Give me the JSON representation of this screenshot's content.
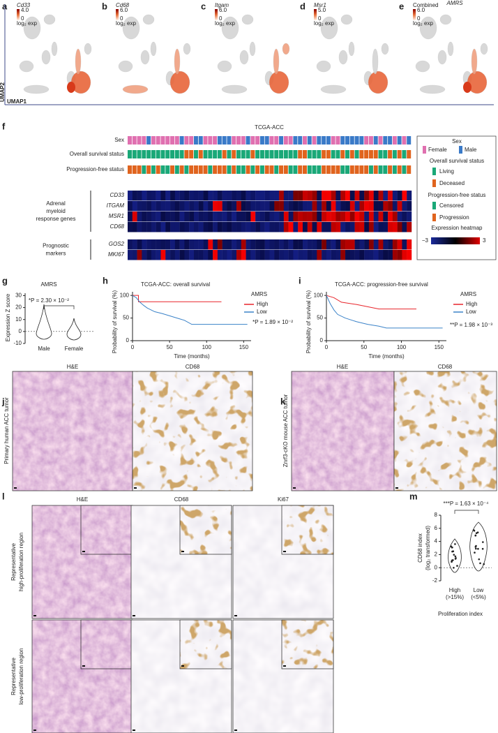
{
  "panel_labels": [
    "a",
    "b",
    "c",
    "d",
    "e",
    "f",
    "g",
    "h",
    "i",
    "j",
    "k",
    "l",
    "m"
  ],
  "umap": {
    "x_axis": "UMAP1",
    "y_axis": "UMAP2",
    "header": "AMRS",
    "unit": "log₂ exp",
    "panels": [
      {
        "gene": "Cd33",
        "max": "4.0",
        "min": "0"
      },
      {
        "gene": "Cd68",
        "max": "6.0",
        "min": "0"
      },
      {
        "gene": "Itgam",
        "max": "6.0",
        "min": "0"
      },
      {
        "gene": "Msr1",
        "max": "5.0",
        "min": "0"
      },
      {
        "gene": "Combined",
        "max": "6.0",
        "min": "0"
      }
    ]
  },
  "heatmap": {
    "title": "TCGA-ACC",
    "annotation_rows": [
      "Sex",
      "Overall survival status",
      "Progression-free status"
    ],
    "groups": [
      {
        "lines": [
          "Adrenal",
          "myeloid",
          "response genes"
        ],
        "genes": [
          "CD33",
          "ITGAM",
          "MSR1",
          "CD68"
        ]
      },
      {
        "lines": [
          "Prognostic",
          "markers"
        ],
        "genes": [
          "GOS2",
          "MKI67"
        ]
      }
    ],
    "legend": {
      "sex_title": "Sex",
      "sex": [
        "Female",
        "Male"
      ],
      "os_title": "Overall survival status",
      "os": [
        "Living",
        "Deceased"
      ],
      "pfs_title": "Progression-free status",
      "pfs": [
        "Censored",
        "Progression"
      ],
      "expr_title": "Expression heatmap",
      "expr_min": "−3",
      "expr_max": "3"
    }
  },
  "chart_data": [
    {
      "type": "violin",
      "title": "AMRS",
      "y_label": "Expression Z score",
      "categories": [
        "Male",
        "Female"
      ],
      "ylim": [
        -10,
        32
      ],
      "yticks": [
        -10,
        0,
        10,
        20,
        30
      ],
      "annotation": "*P = 2.30 × 10⁻²"
    },
    {
      "type": "line",
      "title": "TCGA-ACC: overall survival",
      "x_label": "Time (months)",
      "y_label": "Probability of survival (%)",
      "xlim": [
        0,
        160
      ],
      "xticks": [
        0,
        50,
        100,
        150
      ],
      "ylim": [
        0,
        108
      ],
      "yticks": [
        0,
        50,
        100
      ],
      "legend_title": "AMRS",
      "annotation": "*P = 1.89 × 10⁻²",
      "series": [
        {
          "name": "High",
          "color": "#e8242a",
          "x": [
            0,
            8,
            8,
            120
          ],
          "values": [
            100,
            100,
            86,
            86
          ]
        },
        {
          "name": "Low",
          "color": "#3a82c8",
          "x": [
            0,
            5,
            10,
            15,
            20,
            25,
            30,
            40,
            50,
            60,
            70,
            80,
            155
          ],
          "values": [
            100,
            95,
            85,
            78,
            72,
            68,
            64,
            60,
            55,
            50,
            45,
            36,
            36
          ]
        }
      ]
    },
    {
      "type": "line",
      "title": "TCGA-ACC: progression-free survival",
      "x_label": "Time (months)",
      "y_label": "Probability of survival (%)",
      "xlim": [
        0,
        160
      ],
      "xticks": [
        0,
        50,
        100,
        150
      ],
      "ylim": [
        0,
        108
      ],
      "yticks": [
        0,
        50,
        100
      ],
      "legend_title": "AMRS",
      "annotation": "**P = 1.98 × 10⁻³",
      "series": [
        {
          "name": "High",
          "color": "#e8242a",
          "x": [
            0,
            10,
            20,
            40,
            70,
            120
          ],
          "values": [
            100,
            95,
            85,
            80,
            70,
            70
          ]
        },
        {
          "name": "Low",
          "color": "#3a82c8",
          "x": [
            0,
            5,
            10,
            15,
            25,
            40,
            55,
            70,
            80,
            155
          ],
          "values": [
            100,
            82,
            68,
            58,
            50,
            42,
            36,
            32,
            28,
            28
          ]
        }
      ]
    },
    {
      "type": "violin",
      "title": "***P = 1.63 × 10⁻⁴",
      "y_label": [
        "CD68 index",
        "(log₂ transformed)"
      ],
      "x_label": "Proliferation index",
      "categories": [
        "High",
        "Low"
      ],
      "category_notes": [
        "(>15%)",
        "(<5%)"
      ],
      "ylim": [
        -2,
        8
      ],
      "yticks": [
        -2,
        0,
        2,
        4,
        6,
        8
      ]
    }
  ],
  "histology": {
    "j": {
      "columns": [
        "H&E",
        "CD68"
      ],
      "row_label": "Primary human ACC tumor"
    },
    "k": {
      "columns": [
        "H&E",
        "CD68"
      ],
      "row_label": "Znrf3-cKO mouse ACC tumor"
    },
    "l": {
      "columns": [
        "H&E",
        "CD68",
        "Ki67"
      ],
      "rows": [
        [
          "Representative",
          "high-proliferation region"
        ],
        [
          "Representative",
          "low-proliferation region"
        ]
      ]
    }
  }
}
